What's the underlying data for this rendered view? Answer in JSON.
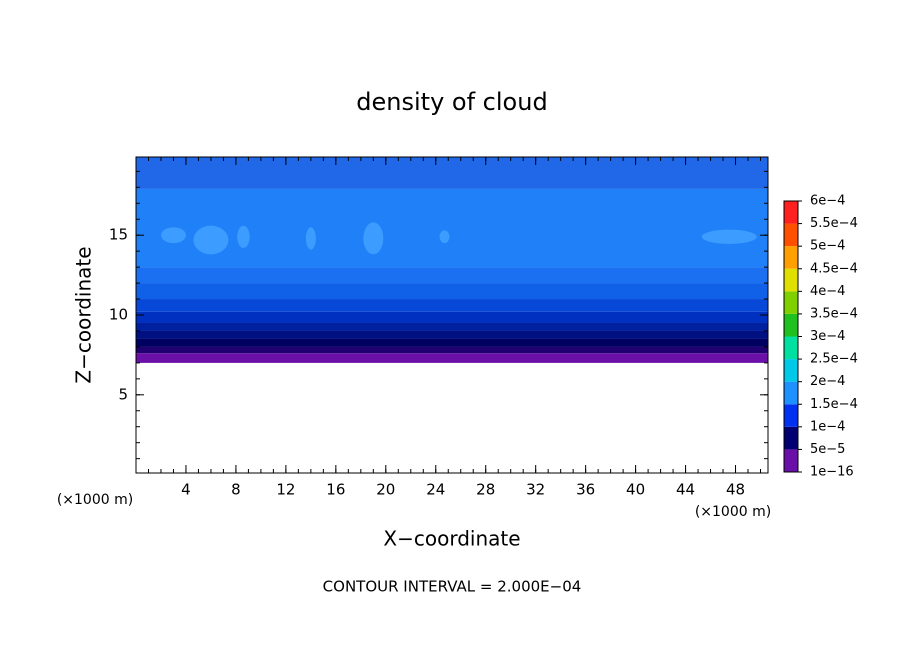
{
  "chart_data": {
    "type": "contour",
    "title": "density of cloud",
    "xlabel": "X−coordinate",
    "ylabel": "Z−coordinate",
    "x_unit_label": "(×1000 m)",
    "y_unit_label": "(×1000 m)",
    "footer": "CONTOUR INTERVAL = 2.000E−04",
    "xlim": [
      0,
      50.6
    ],
    "ylim": [
      0.1,
      19.9
    ],
    "xticks": [
      4,
      8,
      12,
      16,
      20,
      24,
      28,
      32,
      36,
      40,
      44,
      48
    ],
    "yticks": [
      5,
      10,
      15
    ],
    "layers": [
      {
        "z": [
          17.9,
          19.9
        ],
        "color": "#2068e8"
      },
      {
        "z": [
          13.0,
          17.9
        ],
        "color": "#1f80f8"
      },
      {
        "z": [
          12.0,
          13.0
        ],
        "color": "#1a70f0"
      },
      {
        "z": [
          11.0,
          12.0
        ],
        "color": "#1060e8"
      },
      {
        "z": [
          10.2,
          11.0
        ],
        "color": "#0848d8"
      },
      {
        "z": [
          9.5,
          10.2
        ],
        "color": "#0030c0"
      },
      {
        "z": [
          9.0,
          9.5
        ],
        "color": "#0020a0"
      },
      {
        "z": [
          8.5,
          9.0
        ],
        "color": "#001080"
      },
      {
        "z": [
          8.0,
          8.5
        ],
        "color": "#000060"
      },
      {
        "z": [
          7.6,
          8.0
        ],
        "color": "#200070"
      },
      {
        "z": [
          7.0,
          7.6
        ],
        "color": "#6a10a8"
      }
    ],
    "cells": [
      {
        "x": 3,
        "z": 15,
        "rx": 1,
        "rz": 0.5,
        "color": "#3c9cff"
      },
      {
        "x": 6,
        "z": 14.7,
        "rx": 1.4,
        "rz": 0.9,
        "color": "#3c9cff"
      },
      {
        "x": 8.6,
        "z": 14.9,
        "rx": 0.5,
        "rz": 0.7,
        "color": "#3c9cff"
      },
      {
        "x": 14,
        "z": 14.8,
        "rx": 0.4,
        "rz": 0.7,
        "color": "#3c9cff"
      },
      {
        "x": 19,
        "z": 14.8,
        "rx": 0.8,
        "rz": 1,
        "color": "#3c9cff"
      },
      {
        "x": 24.7,
        "z": 14.9,
        "rx": 0.4,
        "rz": 0.4,
        "color": "#3c9cff"
      },
      {
        "x": 47.5,
        "z": 14.9,
        "rx": 2.2,
        "rz": 0.45,
        "color": "#3c9cff"
      }
    ],
    "colorbar_lim": [
      1e-16,
      0.0006
    ],
    "colorbar_ticks": [
      {
        "value": 1e-16,
        "label": "1e−16"
      },
      {
        "value": 5e-05,
        "label": "5e−5"
      },
      {
        "value": 0.0001,
        "label": "1e−4"
      },
      {
        "value": 0.00015,
        "label": "1.5e−4"
      },
      {
        "value": 0.0002,
        "label": "2e−4"
      },
      {
        "value": 0.00025,
        "label": "2.5e−4"
      },
      {
        "value": 0.0003,
        "label": "3e−4"
      },
      {
        "value": 0.00035,
        "label": "3.5e−4"
      },
      {
        "value": 0.0004,
        "label": "4e−4"
      },
      {
        "value": 0.00045,
        "label": "4.5e−4"
      },
      {
        "value": 0.0005,
        "label": "5e−4"
      },
      {
        "value": 0.00055,
        "label": "5.5e−4"
      },
      {
        "value": 0.0006,
        "label": "6e−4"
      }
    ],
    "colorbar_colors": [
      "#6a10a8",
      "#000070",
      "#0030f0",
      "#1e90ff",
      "#00c8e8",
      "#00e0a0",
      "#20c020",
      "#80d000",
      "#e0e000",
      "#ffa000",
      "#ff5000",
      "#ff2020",
      "#ff8080"
    ]
  }
}
